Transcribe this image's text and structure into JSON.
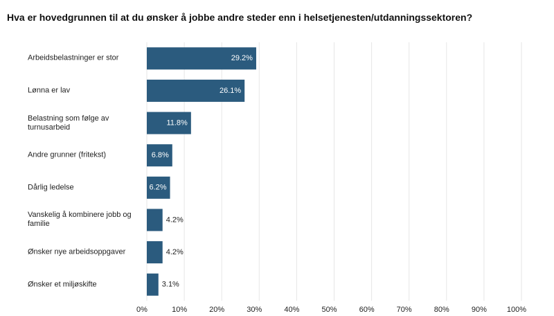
{
  "chart_data": {
    "type": "barh",
    "title": "Hva er hovedgrunnen til at du ønsker å jobbe andre steder enn i helsetjenesten/utdanningssektoren?",
    "categories": [
      "Arbeidsbelastninger er stor",
      "Lønna er lav",
      "Belastning som følge av turnusarbeid",
      "Andre grunner (fritekst)",
      "Dårlig ledelse",
      "Vanskelig å kombinere jobb og familie",
      "Ønsker nye arbeidsoppgaver",
      "Ønsker et miljøskifte"
    ],
    "values": [
      29.2,
      26.1,
      11.8,
      6.8,
      6.2,
      4.2,
      4.2,
      3.1
    ],
    "value_labels": [
      "29.2%",
      "26.1%",
      "11.8%",
      "6.8%",
      "6.2%",
      "4.2%",
      "4.2%",
      "3.1%"
    ],
    "color": "#2b5b7e",
    "xlim": [
      0,
      100
    ],
    "xticks": [
      {
        "value": 0,
        "label": "0%"
      },
      {
        "value": 10,
        "label": "10%"
      },
      {
        "value": 20,
        "label": "20%"
      },
      {
        "value": 30,
        "label": "30%"
      },
      {
        "value": 40,
        "label": "40%"
      },
      {
        "value": 50,
        "label": "50%"
      },
      {
        "value": 60,
        "label": "60%"
      },
      {
        "value": 70,
        "label": "70%"
      },
      {
        "value": 80,
        "label": "80%"
      },
      {
        "value": 90,
        "label": "90%"
      },
      {
        "value": 100,
        "label": "100%"
      }
    ],
    "grid": true
  }
}
